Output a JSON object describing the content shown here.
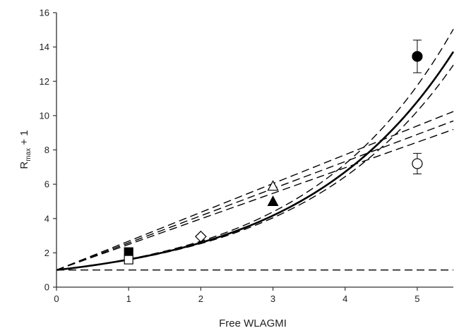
{
  "chart_data": {
    "type": "scatter",
    "xlabel": "Free WLAGMI",
    "ylabel": {
      "main": "R",
      "sub": "max",
      "suffix": " + 1"
    },
    "xlim": [
      0,
      5.5
    ],
    "ylim": [
      0,
      16
    ],
    "xticks": [
      "0",
      "1",
      "2",
      "3",
      "4",
      "5"
    ],
    "yticks": [
      "0",
      "2",
      "4",
      "6",
      "8",
      "10",
      "12",
      "14",
      "16"
    ],
    "grid": false,
    "points": [
      {
        "x": 1,
        "y": 2.05,
        "marker": "square",
        "fill": "filled"
      },
      {
        "x": 1,
        "y": 1.6,
        "marker": "square",
        "fill": "open"
      },
      {
        "x": 2,
        "y": 2.95,
        "marker": "diamond",
        "fill": "open"
      },
      {
        "x": 3,
        "y": 5.0,
        "marker": "triangle",
        "fill": "filled"
      },
      {
        "x": 3,
        "y": 5.9,
        "marker": "triangle",
        "fill": "open"
      },
      {
        "x": 5,
        "y": 13.45,
        "marker": "circle",
        "fill": "filled",
        "err_low": 12.5,
        "err_high": 14.4
      },
      {
        "x": 5,
        "y": 7.2,
        "marker": "circle",
        "fill": "open",
        "err_low": 6.6,
        "err_high": 7.8
      }
    ],
    "curves": [
      {
        "kind": "exponential",
        "style": "solid",
        "base": 1.61,
        "x": [
          0,
          5.5
        ]
      },
      {
        "kind": "exponential",
        "style": "dashed",
        "base": 1.637,
        "x": [
          0,
          5.5
        ]
      },
      {
        "kind": "exponential",
        "style": "dashed",
        "base": 1.593,
        "x": [
          0,
          5.5
        ]
      },
      {
        "kind": "linear",
        "style": "dashed",
        "slope": 1.58,
        "intercept": 1,
        "x": [
          0,
          5.5
        ]
      },
      {
        "kind": "linear",
        "style": "dashed",
        "slope": 1.68,
        "intercept": 1,
        "x": [
          0,
          5.5
        ]
      },
      {
        "kind": "linear",
        "style": "dashed",
        "slope": 1.49,
        "intercept": 1,
        "x": [
          0,
          5.5
        ]
      },
      {
        "kind": "constant",
        "style": "dashed",
        "y": 1,
        "x": [
          0,
          5.5
        ]
      }
    ],
    "colors": {
      "ink": "#000000",
      "axis": "#333333"
    }
  }
}
